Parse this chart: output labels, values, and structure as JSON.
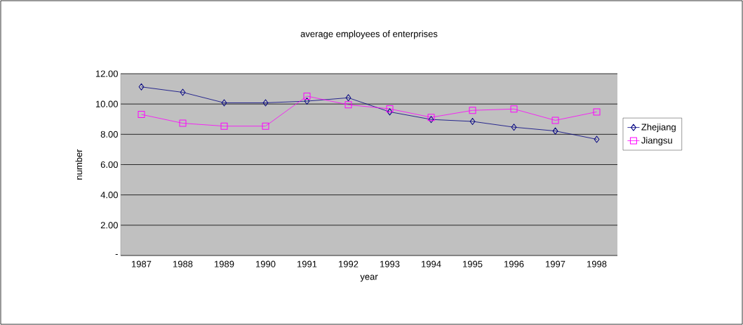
{
  "chart_data": {
    "type": "line",
    "title": "average employees of enterprises",
    "xlabel": "year",
    "ylabel": "number",
    "categories": [
      "1987",
      "1988",
      "1989",
      "1990",
      "1991",
      "1992",
      "1993",
      "1994",
      "1995",
      "1996",
      "1997",
      "1998"
    ],
    "series": [
      {
        "name": "Zhejiang",
        "color": "#000080",
        "marker": "diamond",
        "values": [
          11.13,
          10.77,
          10.08,
          10.08,
          10.19,
          10.41,
          9.48,
          8.98,
          8.85,
          8.47,
          8.22,
          7.67
        ]
      },
      {
        "name": "Jiangsu",
        "color": "#ff00ff",
        "marker": "square",
        "values": [
          9.31,
          8.73,
          8.54,
          8.54,
          10.52,
          9.95,
          9.68,
          9.12,
          9.58,
          9.67,
          8.92,
          9.48
        ]
      }
    ],
    "ylim": [
      0,
      12
    ],
    "yticks": [
      {
        "value": 0,
        "label": "-"
      },
      {
        "value": 2,
        "label": "2.00"
      },
      {
        "value": 4,
        "label": "4.00"
      },
      {
        "value": 6,
        "label": "6.00"
      },
      {
        "value": 8,
        "label": "8.00"
      },
      {
        "value": 10,
        "label": "10.00"
      },
      {
        "value": 12,
        "label": "12.00"
      }
    ],
    "grid": "y",
    "legend": "right",
    "line_style": "solid"
  }
}
